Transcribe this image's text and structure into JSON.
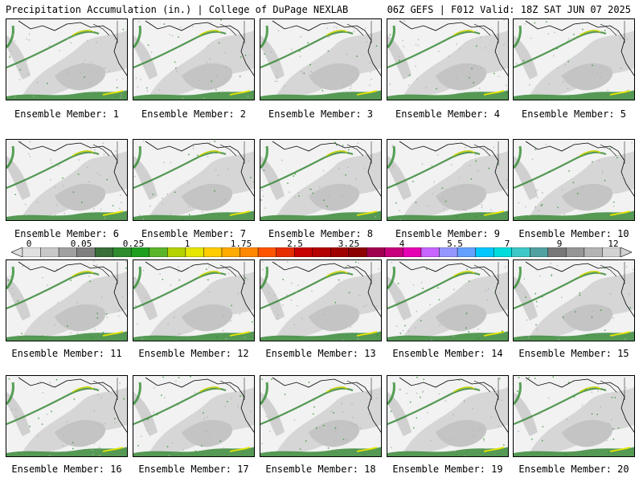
{
  "header": {
    "title_left": "Precipitation Accumulation (in.) | College of DuPage NEXLAB",
    "title_right": "06Z GEFS | F012 Valid: 18Z SAT JUN 07 2025"
  },
  "colorbar": {
    "tick_labels": [
      "0",
      "0.05",
      "0.25",
      "1",
      "1.75",
      "2.5",
      "3.25",
      "4",
      "5.5",
      "7",
      "9",
      "12"
    ],
    "colors": [
      "#e0e0e0",
      "#c8c8c8",
      "#a0a0a0",
      "#808080",
      "#3a6e3a",
      "#2e8b2e",
      "#1ea01e",
      "#5ab52a",
      "#b4d200",
      "#e6e600",
      "#ffcc00",
      "#ffaa00",
      "#ff8800",
      "#ff5500",
      "#e62d00",
      "#c80000",
      "#b40000",
      "#a00000",
      "#8c0000",
      "#a00050",
      "#c8007d",
      "#e600b4",
      "#c864ff",
      "#9696ff",
      "#64a0ff",
      "#00c8ff",
      "#00dcdc",
      "#40c8c8",
      "#50a0a0",
      "#787878",
      "#969696",
      "#b4b4b4",
      "#d2d2d2"
    ]
  },
  "panels": [
    {
      "label": "Ensemble Member: 1"
    },
    {
      "label": "Ensemble Member: 2"
    },
    {
      "label": "Ensemble Member: 3"
    },
    {
      "label": "Ensemble Member: 4"
    },
    {
      "label": "Ensemble Member: 5"
    },
    {
      "label": "Ensemble Member: 6"
    },
    {
      "label": "Ensemble Member: 7"
    },
    {
      "label": "Ensemble Member: 8"
    },
    {
      "label": "Ensemble Member: 9"
    },
    {
      "label": "Ensemble Member: 10"
    },
    {
      "label": "Ensemble Member: 11"
    },
    {
      "label": "Ensemble Member: 12"
    },
    {
      "label": "Ensemble Member: 13"
    },
    {
      "label": "Ensemble Member: 14"
    },
    {
      "label": "Ensemble Member: 15"
    },
    {
      "label": "Ensemble Member: 16"
    },
    {
      "label": "Ensemble Member: 17"
    },
    {
      "label": "Ensemble Member: 18"
    },
    {
      "label": "Ensemble Member: 19"
    },
    {
      "label": "Ensemble Member: 20"
    }
  ]
}
